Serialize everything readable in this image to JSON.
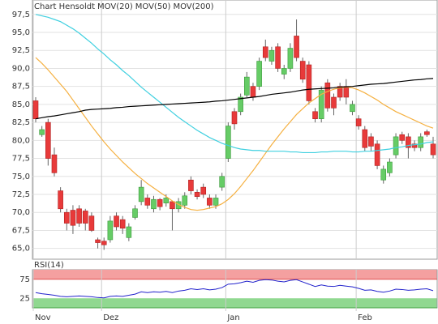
{
  "chart_data": [
    {
      "type": "candlestick",
      "title": "Chart Hensoldt",
      "categories": [
        "Nov",
        null,
        null,
        null,
        null,
        null,
        null,
        null,
        null,
        null,
        null,
        "Dez",
        null,
        null,
        null,
        null,
        null,
        null,
        null,
        null,
        null,
        null,
        null,
        null,
        null,
        null,
        null,
        null,
        null,
        null,
        null,
        "Jan",
        null,
        null,
        null,
        null,
        null,
        null,
        null,
        null,
        null,
        null,
        null,
        null,
        null,
        null,
        null,
        null,
        null,
        null,
        null,
        null,
        "Feb",
        null,
        null,
        null,
        null,
        null,
        null,
        null,
        null,
        null,
        null,
        null,
        null
      ],
      "open": [
        85.5,
        80.8,
        82.5,
        78,
        73,
        70,
        70.3,
        70.5,
        70.2,
        69.5,
        66.2,
        66,
        66.2,
        69.5,
        69,
        66.5,
        69.3,
        71.5,
        72,
        70.5,
        71.8,
        71.3,
        71.5,
        70.5,
        71,
        74.5,
        72.8,
        73.5,
        72,
        71,
        73.5,
        77.5,
        84,
        84,
        86.3,
        87.5,
        87.5,
        93,
        91,
        93,
        89.2,
        90,
        94.5,
        91,
        90.5,
        84,
        83,
        88,
        86,
        87.5,
        87.5,
        84,
        83,
        81.5,
        80.5,
        79.5,
        74.5,
        75.5,
        78,
        80.8,
        80.5,
        79.5,
        79,
        81.2,
        79.5
      ],
      "high": [
        86,
        82,
        83,
        79,
        73.5,
        70.5,
        71,
        71,
        70.5,
        70,
        66.5,
        66.5,
        69.5,
        70,
        69.5,
        68.5,
        71,
        74.5,
        72.5,
        72.3,
        72,
        72.5,
        71.5,
        72,
        72.8,
        75,
        73.2,
        74,
        72.5,
        72.5,
        75.5,
        82.5,
        84.5,
        86.5,
        89.5,
        88,
        91.5,
        94,
        93,
        93.5,
        90.5,
        93.5,
        96.8,
        91.5,
        91,
        84.5,
        87.5,
        88.5,
        86.5,
        88,
        88.5,
        85.5,
        83.5,
        82,
        81,
        80,
        76.5,
        77.5,
        81,
        81.2,
        81,
        80,
        81,
        81.5,
        80.5
      ],
      "low": [
        82.5,
        80.5,
        76.5,
        75,
        70,
        67.5,
        67,
        68,
        67.5,
        67.3,
        65,
        64.8,
        65.8,
        67.5,
        67,
        66,
        69,
        71,
        70.5,
        70,
        70.3,
        70.8,
        67.5,
        70,
        70.5,
        72.5,
        71.8,
        72,
        70.5,
        70.5,
        73,
        77,
        81.5,
        83.5,
        86,
        85.5,
        87,
        91,
        90.5,
        89.5,
        88.5,
        89.5,
        91,
        88,
        85,
        82.5,
        82.5,
        84,
        83.5,
        85.5,
        85,
        83.5,
        81.5,
        78.5,
        78.5,
        76,
        74,
        75,
        77.5,
        79.5,
        77.5,
        78.5,
        78.5,
        80.5,
        77.5
      ],
      "close": [
        83,
        81.5,
        77.5,
        75.5,
        70.5,
        68.5,
        68.2,
        68.5,
        68.5,
        67.5,
        65.8,
        65.5,
        68.8,
        68,
        67.8,
        68,
        70.5,
        73.5,
        71,
        71.8,
        70.8,
        72,
        70.5,
        71.5,
        72.3,
        73,
        72.2,
        72.5,
        71,
        72,
        75,
        82,
        82.3,
        86,
        88.8,
        86,
        91,
        91.5,
        92.5,
        90,
        90,
        92.8,
        91.5,
        88.5,
        85.5,
        83,
        87,
        84.5,
        84.5,
        86,
        86,
        85,
        82,
        79,
        79.2,
        76.5,
        76,
        77,
        80.5,
        80,
        79,
        79,
        80.5,
        80.8,
        78
      ],
      "up_color": "#66cc66",
      "down_color": "#e83a3a",
      "series": [
        {
          "name": "MOV(20)",
          "color": "#f5b040",
          "values": [
            91.5,
            90.7,
            89.8,
            88.8,
            87.8,
            86.8,
            85.6,
            84.4,
            83.2,
            82,
            80.9,
            79.8,
            78.8,
            77.9,
            77,
            76.2,
            75.4,
            74.7,
            74,
            73.4,
            72.8,
            72.2,
            71.6,
            71.1,
            70.7,
            70.4,
            70.3,
            70.4,
            70.6,
            70.8,
            71.2,
            71.8,
            72.6,
            73.6,
            74.7,
            75.8,
            77,
            78.2,
            79.4,
            80.5,
            81.6,
            82.6,
            83.6,
            84.4,
            85.2,
            85.8,
            86.4,
            86.8,
            87.1,
            87.3,
            87.4,
            87.3,
            87,
            86.6,
            86.1,
            85.6,
            85,
            84.5,
            84,
            83.6,
            83.2,
            82.8,
            82.4,
            82,
            81.7
          ]
        },
        {
          "name": "MOV(50)",
          "color": "#40d0e0",
          "values": [
            97.5,
            97.3,
            97.1,
            96.8,
            96.5,
            96,
            95.5,
            94.9,
            94.2,
            93.5,
            92.7,
            92,
            91.2,
            90.5,
            89.7,
            89,
            88.2,
            87.4,
            86.7,
            86,
            85.3,
            84.6,
            83.9,
            83.2,
            82.6,
            82,
            81.4,
            80.9,
            80.4,
            80,
            79.6,
            79.3,
            79,
            78.8,
            78.7,
            78.6,
            78.6,
            78.5,
            78.5,
            78.5,
            78.5,
            78.4,
            78.4,
            78.3,
            78.3,
            78.3,
            78.4,
            78.4,
            78.5,
            78.5,
            78.5,
            78.4,
            78.4,
            78.5,
            78.5,
            78.6,
            78.7,
            78.8,
            79,
            79.1,
            79.3,
            79.4,
            79.5,
            79.7,
            79.8
          ]
        },
        {
          "name": "MOV(200)",
          "color": "#000000",
          "values": [
            83,
            83.15,
            83.3,
            83.4,
            83.55,
            83.7,
            83.85,
            84,
            84.2,
            84.3,
            84.35,
            84.4,
            84.45,
            84.55,
            84.6,
            84.7,
            84.75,
            84.8,
            84.85,
            84.9,
            84.95,
            85,
            85.05,
            85.1,
            85.15,
            85.2,
            85.25,
            85.3,
            85.35,
            85.45,
            85.5,
            85.6,
            85.7,
            85.8,
            85.9,
            86,
            86.1,
            86.25,
            86.4,
            86.5,
            86.6,
            86.7,
            86.85,
            87,
            87.1,
            87.15,
            87.2,
            87.25,
            87.3,
            87.4,
            87.45,
            87.5,
            87.6,
            87.7,
            87.8,
            87.85,
            87.9,
            88,
            88.1,
            88.2,
            88.3,
            88.4,
            88.45,
            88.55,
            88.6
          ]
        }
      ],
      "ylim": [
        63.5,
        99.5
      ],
      "yticks": [
        {
          "value": 65,
          "label": "65,0"
        },
        {
          "value": 67.5,
          "label": "67,5"
        },
        {
          "value": 70,
          "label": "70,0"
        },
        {
          "value": 72.5,
          "label": "72,5"
        },
        {
          "value": 75,
          "label": "75,0"
        },
        {
          "value": 77.5,
          "label": "77,5"
        },
        {
          "value": 80,
          "label": "80,0"
        },
        {
          "value": 82.5,
          "label": "82,5"
        },
        {
          "value": 85,
          "label": "85,0"
        },
        {
          "value": 87.5,
          "label": "87,5"
        },
        {
          "value": 90,
          "label": "90,0"
        },
        {
          "value": 92.5,
          "label": "92,5"
        },
        {
          "value": 95,
          "label": "95,0"
        },
        {
          "value": 97.5,
          "label": "97,5"
        }
      ],
      "grid": true
    },
    {
      "type": "line",
      "title": "RSI(14)",
      "color": "#2222cc",
      "values": [
        40,
        37,
        35,
        33,
        30,
        29,
        30,
        31,
        30,
        29,
        27,
        26,
        30,
        31,
        30,
        33,
        36,
        42,
        40,
        42,
        41,
        43,
        40,
        44,
        46,
        50,
        48,
        50,
        47,
        49,
        53,
        62,
        63,
        66,
        70,
        67,
        72,
        74,
        73,
        70,
        68,
        72,
        74,
        68,
        62,
        56,
        60,
        57,
        56,
        59,
        57,
        55,
        51,
        46,
        47,
        43,
        41,
        44,
        49,
        48,
        46,
        47,
        49,
        50,
        45
      ],
      "ylim": [
        0,
        100
      ],
      "yticks": [
        25,
        75
      ],
      "bands": [
        {
          "from": 75,
          "to": 100,
          "color": "#f4a0a0"
        },
        {
          "from": 0,
          "to": 25,
          "color": "#90d890"
        }
      ]
    }
  ]
}
